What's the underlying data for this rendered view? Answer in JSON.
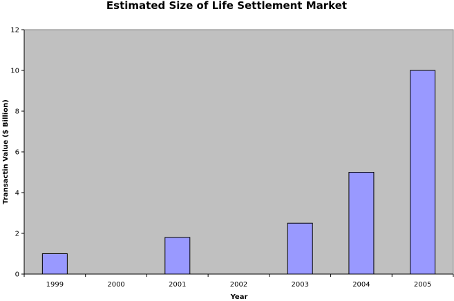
{
  "chart_data": {
    "type": "bar",
    "title": "Estimated Size of Life Settlement Market",
    "xlabel": "Year",
    "ylabel": "Transactin Value ($ Billion)",
    "categories": [
      "1999",
      "2000",
      "2001",
      "2002",
      "2003",
      "2004",
      "2005"
    ],
    "values": [
      1,
      null,
      1.8,
      null,
      2.5,
      5,
      10
    ],
    "ylim": [
      0,
      12
    ],
    "yticks": [
      "0",
      "2",
      "4",
      "6",
      "8",
      "10",
      "12"
    ],
    "grid": false,
    "legend": "none",
    "colors": {
      "bar_fill": "#9999ff",
      "bar_stroke": "#000000",
      "plot_background": "#c0c0c0",
      "axis": "#000000"
    }
  }
}
